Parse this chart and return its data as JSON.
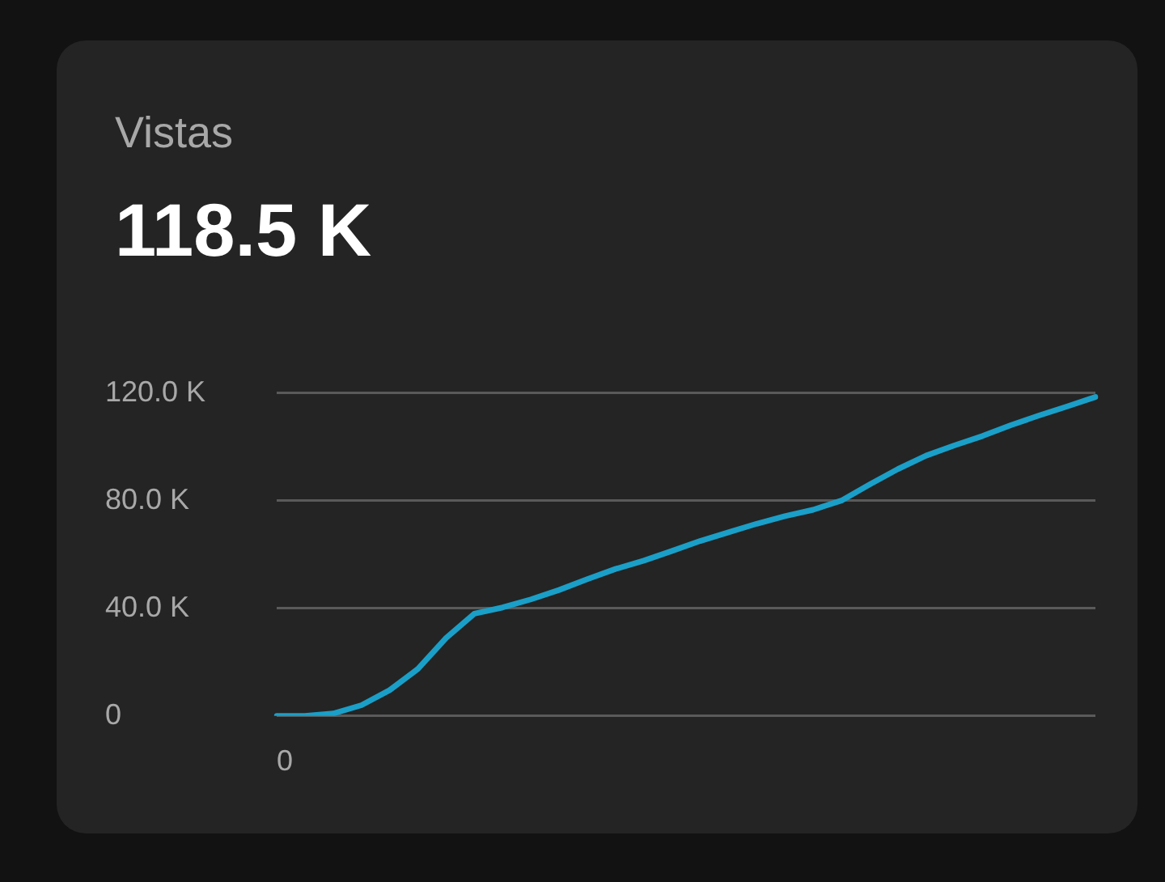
{
  "chart_data": {
    "type": "line",
    "title": "Vistas",
    "subtitle": "118.5 K",
    "categories": [
      "0",
      null,
      null,
      null,
      null,
      null,
      null,
      null,
      null,
      null,
      null,
      null,
      null,
      null,
      null,
      null,
      null,
      null,
      null,
      null,
      null,
      null,
      null,
      null,
      null,
      null,
      null,
      null,
      null,
      null
    ],
    "series": [
      {
        "color": "#1a9fc8",
        "values": [
          0,
          0,
          0.9,
          4,
          9.6,
          17.5,
          29,
          38,
          40.3,
          43.3,
          46.8,
          50.8,
          54.6,
          57.7,
          61.3,
          65,
          68.2,
          71.4,
          74.2,
          76.6,
          80,
          86,
          91.7,
          96.7,
          100.5,
          104,
          108,
          111.6,
          115,
          118.5
        ]
      }
    ],
    "ylim": [
      0,
      120
    ],
    "yticks": [
      {
        "value": 0,
        "label": "0"
      },
      {
        "value": 40,
        "label": "40.0 K"
      },
      {
        "value": 80,
        "label": "80.0 K"
      },
      {
        "value": 120,
        "label": "120.0 K"
      }
    ],
    "grid": "y",
    "legend": false,
    "marker": "none",
    "line_style": "solid"
  }
}
